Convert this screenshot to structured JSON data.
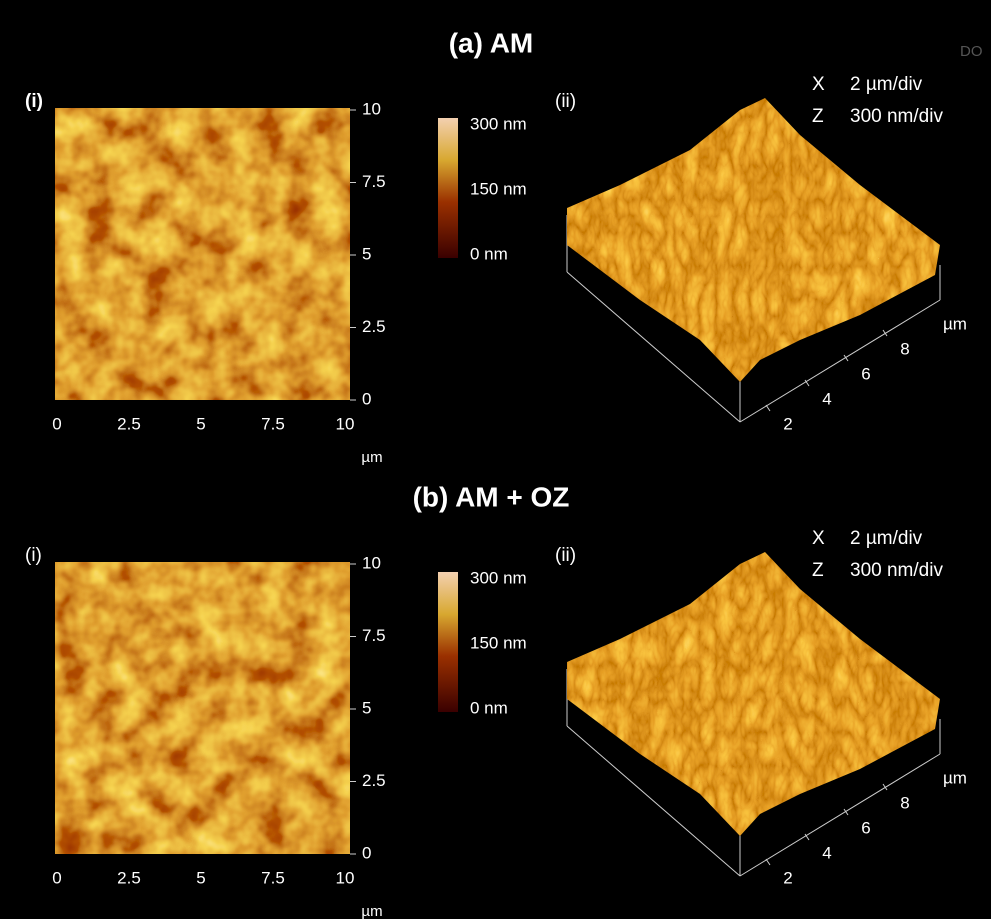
{
  "watermark": "DO",
  "panels": [
    {
      "title": "(a) AM",
      "map": {
        "label": "(i)",
        "yticks": [
          10,
          7.5,
          5,
          2.5,
          0
        ],
        "xticks": [
          0,
          2.5,
          5,
          7.5,
          10
        ],
        "unit": "µm"
      },
      "colorbar": {
        "labels": [
          "300 nm",
          "150 nm",
          "0 nm"
        ]
      },
      "view_3d": {
        "label": "(ii)",
        "scale": [
          {
            "axis": "X",
            "value": "2 µm/div"
          },
          {
            "axis": "Z",
            "value": "300 nm/div"
          }
        ],
        "ticks": [
          2,
          4,
          6,
          8
        ],
        "unit": "µm"
      }
    },
    {
      "title": "(b) AM + OZ",
      "map": {
        "label": "(i)",
        "yticks": [
          10,
          7.5,
          5,
          2.5,
          0
        ],
        "xticks": [
          0,
          2.5,
          5,
          7.5,
          10
        ],
        "unit": "µm"
      },
      "colorbar": {
        "labels": [
          "300 nm",
          "150 nm",
          "0 nm"
        ]
      },
      "view_3d": {
        "label": "(ii)",
        "scale": [
          {
            "axis": "X",
            "value": "2 µm/div"
          },
          {
            "axis": "Z",
            "value": "300 nm/div"
          }
        ],
        "ticks": [
          2,
          4,
          6,
          8
        ],
        "unit": "µm"
      }
    }
  ]
}
